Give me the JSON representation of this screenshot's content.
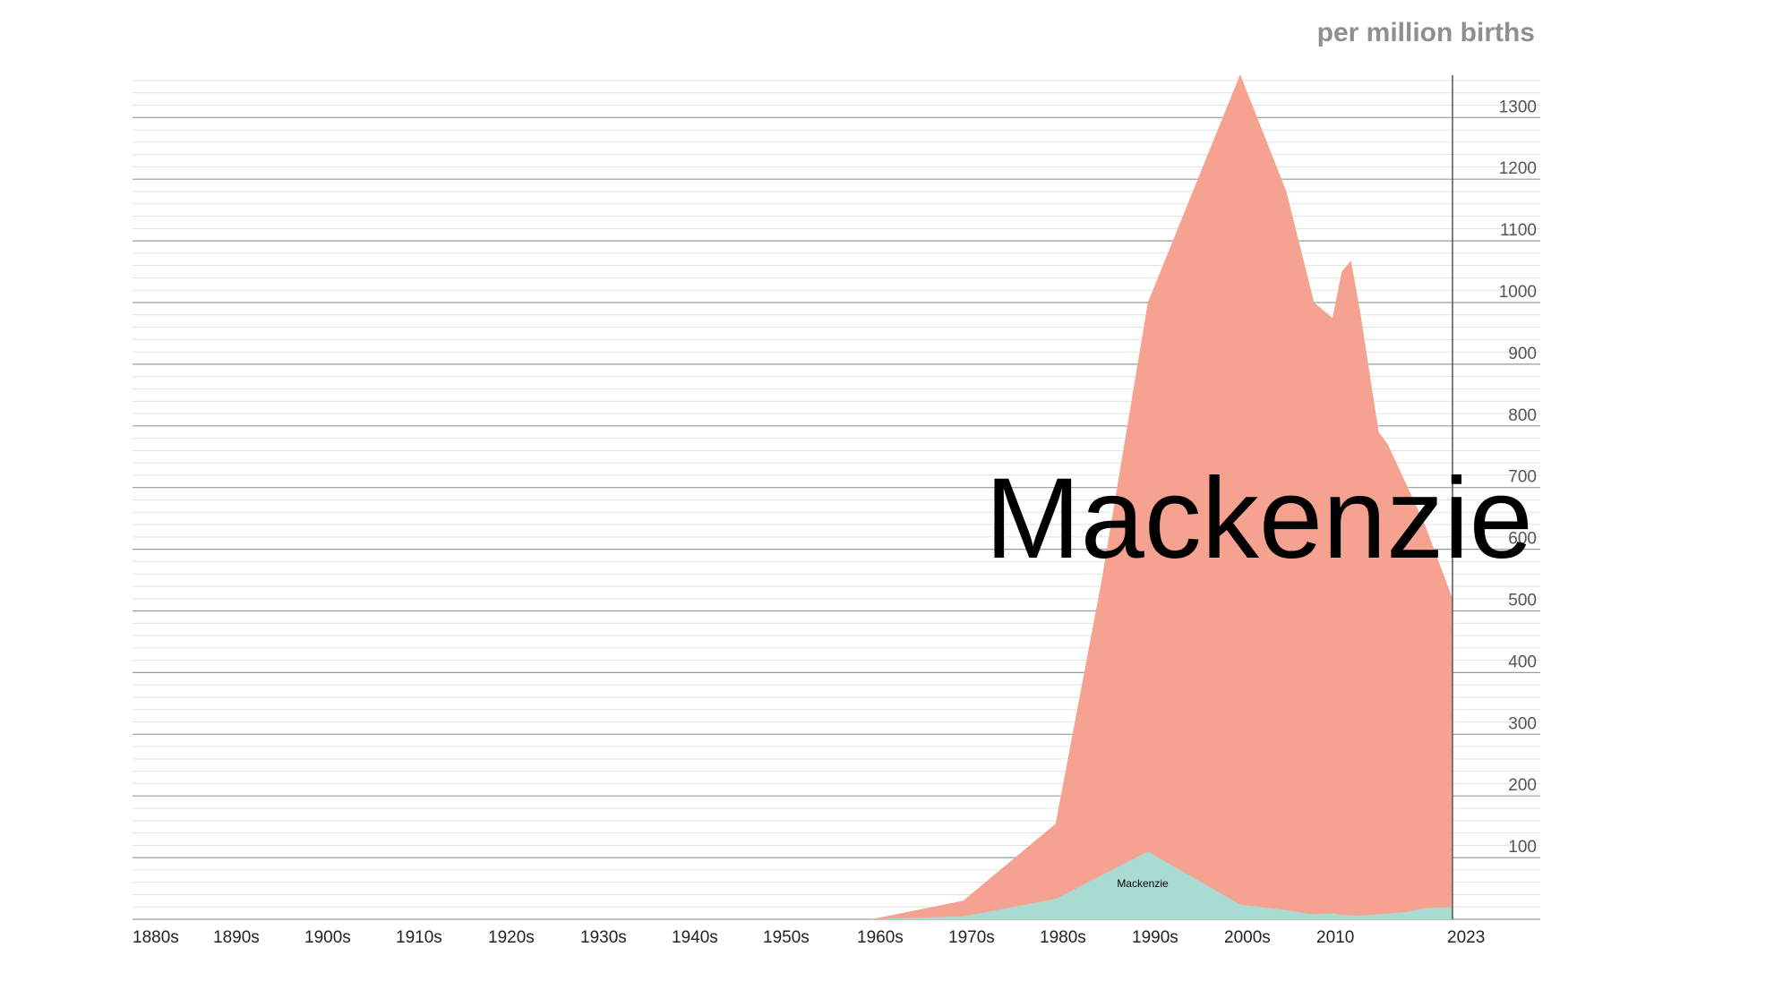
{
  "chart_data": {
    "type": "area",
    "stacked": true,
    "unit_label": "per million births",
    "x_tick_labels": [
      "1880s",
      "1890s",
      "1900s",
      "1910s",
      "1920s",
      "1930s",
      "1940s",
      "1950s",
      "1960s",
      "1970s",
      "1980s",
      "1990s",
      "2000s",
      "2010",
      "2023"
    ],
    "x_range": [
      1880,
      2023
    ],
    "ylim": [
      0,
      1370
    ],
    "y_ticks": [
      100,
      200,
      300,
      400,
      500,
      600,
      700,
      800,
      900,
      1000,
      1100,
      1200,
      1300
    ],
    "grid": true,
    "series": [
      {
        "name": "Mackenzie",
        "color": "#a9dbd2",
        "points": [
          [
            1960,
            0
          ],
          [
            1970,
            5
          ],
          [
            1980,
            33
          ],
          [
            1990,
            110
          ],
          [
            2000,
            24
          ],
          [
            2005,
            15
          ],
          [
            2008,
            8
          ],
          [
            2010,
            10
          ],
          [
            2011,
            7
          ],
          [
            2013,
            6
          ],
          [
            2015,
            8
          ],
          [
            2018,
            12
          ],
          [
            2020,
            18
          ],
          [
            2023,
            20
          ]
        ]
      },
      {
        "name": "Mackenzie",
        "color": "#f5a290",
        "points": [
          [
            1960,
            0
          ],
          [
            1970,
            30
          ],
          [
            1980,
            155
          ],
          [
            1985,
            550
          ],
          [
            1990,
            1000
          ],
          [
            2000,
            1370
          ],
          [
            2005,
            1180
          ],
          [
            2008,
            1000
          ],
          [
            2010,
            975
          ],
          [
            2011,
            1050
          ],
          [
            2012,
            1068
          ],
          [
            2013,
            985
          ],
          [
            2015,
            790
          ],
          [
            2016,
            770
          ],
          [
            2020,
            640
          ],
          [
            2023,
            520
          ]
        ]
      }
    ]
  }
}
